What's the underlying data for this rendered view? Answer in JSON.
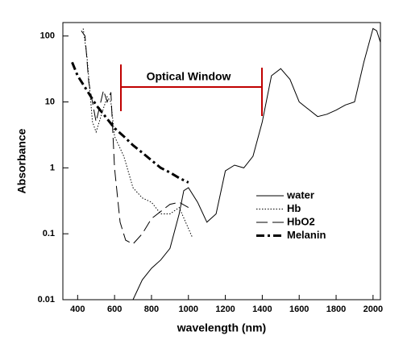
{
  "chart_data": {
    "type": "line",
    "xlabel": "wavelength (nm)",
    "ylabel": "Absorbance",
    "annotation": "Optical Window",
    "xlim": [
      320,
      2040
    ],
    "xticks": [
      400,
      600,
      800,
      1000,
      1200,
      1400,
      1600,
      1800,
      2000
    ],
    "ylim": [
      0.01,
      160
    ],
    "yticks": [
      0.01,
      0.1,
      1,
      10,
      100
    ],
    "log_y": true,
    "legend": "right",
    "series": [
      {
        "name": "water",
        "color": "#000000",
        "style": "solid",
        "x": [
          700,
          750,
          800,
          850,
          900,
          950,
          975,
          1000,
          1050,
          1100,
          1150,
          1200,
          1250,
          1300,
          1350,
          1400,
          1450,
          1500,
          1550,
          1600,
          1700,
          1750,
          1800,
          1850,
          1900,
          1950,
          2000,
          2020,
          2040
        ],
        "values": [
          0.01,
          0.02,
          0.03,
          0.04,
          0.06,
          0.2,
          0.45,
          0.5,
          0.3,
          0.15,
          0.2,
          0.9,
          1.1,
          1.0,
          1.5,
          5,
          25,
          32,
          22,
          10,
          6,
          6.5,
          7.5,
          9,
          10,
          40,
          130,
          120,
          80
        ]
      },
      {
        "name": "Hb",
        "color": "#000000",
        "style": "dotted",
        "x": [
          430,
          450,
          480,
          500,
          540,
          560,
          580,
          600,
          650,
          700,
          750,
          800,
          850,
          900,
          950,
          1000,
          1020
        ],
        "values": [
          130,
          50,
          5,
          3.5,
          8,
          12,
          10,
          3,
          1.5,
          0.5,
          0.35,
          0.3,
          0.2,
          0.2,
          0.25,
          0.12,
          0.09
        ]
      },
      {
        "name": "HbO2",
        "color": "#000000",
        "style": "dashed",
        "x": [
          420,
          440,
          460,
          500,
          540,
          560,
          580,
          600,
          630,
          660,
          700,
          750,
          800,
          900,
          950,
          1000
        ],
        "values": [
          120,
          100,
          20,
          5,
          15,
          10,
          14,
          1,
          0.15,
          0.08,
          0.07,
          0.1,
          0.17,
          0.28,
          0.3,
          0.25
        ]
      },
      {
        "name": "Melanin",
        "color": "#000000",
        "style": "dashdot",
        "x": [
          370,
          400,
          450,
          500,
          550,
          600,
          650,
          700,
          750,
          800,
          850,
          900,
          950,
          1000
        ],
        "values": [
          40,
          25,
          15,
          9,
          6,
          4,
          3,
          2.2,
          1.7,
          1.3,
          1.0,
          0.85,
          0.7,
          0.6
        ]
      }
    ]
  }
}
